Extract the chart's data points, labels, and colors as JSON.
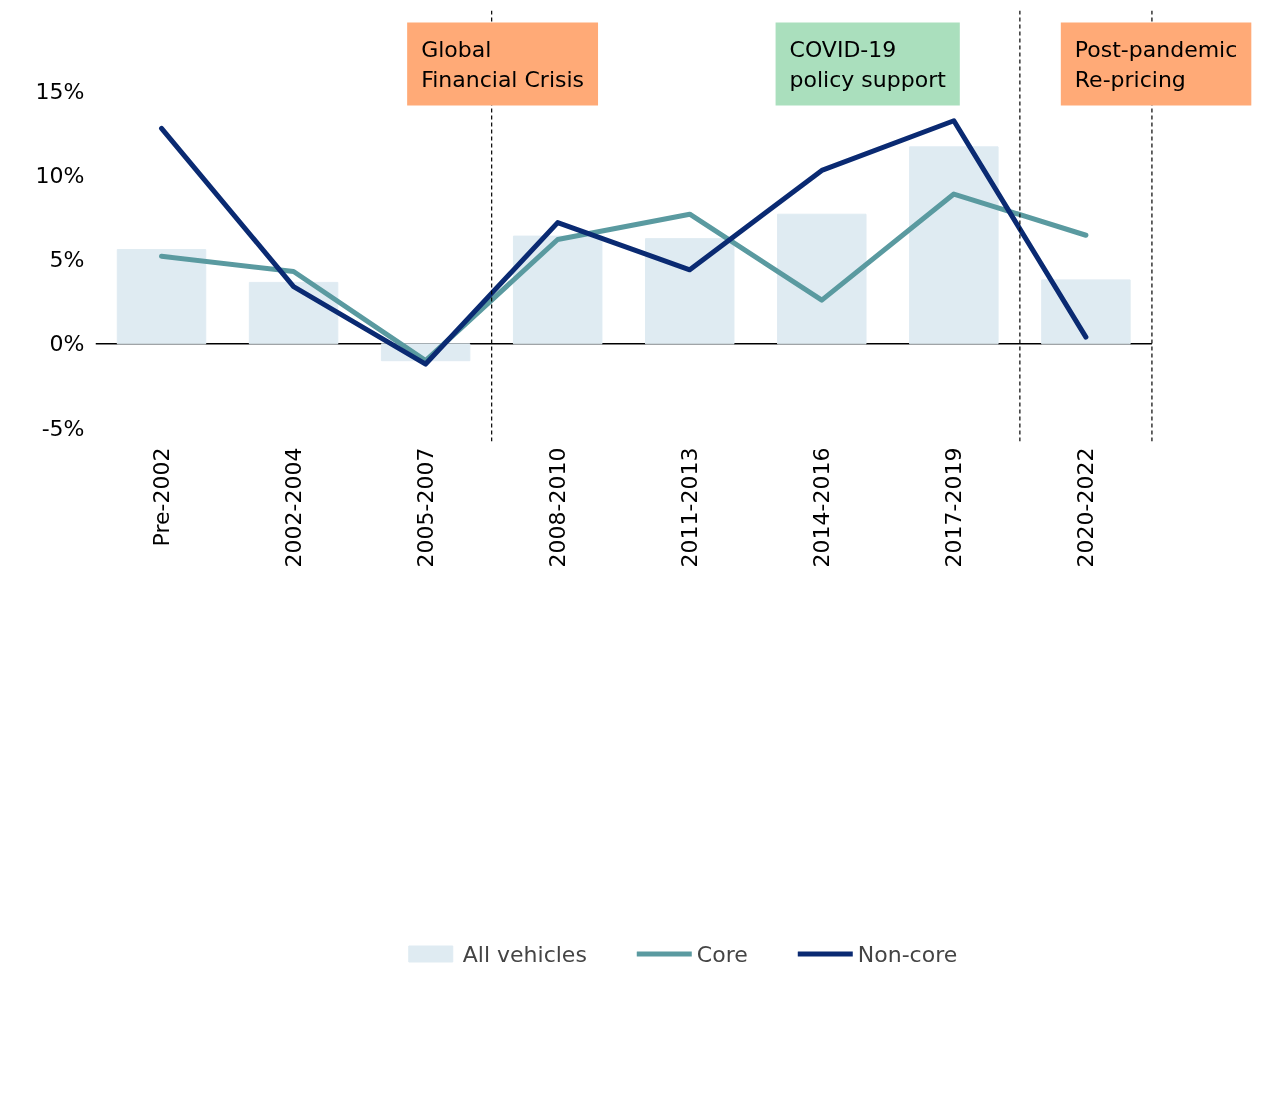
{
  "chart_data": {
    "type": "line",
    "categories": [
      "Pre-2002",
      "2002-2004",
      "2005-2007",
      "2008-2010",
      "2011-2013",
      "2014-2016",
      "2017-2019",
      "2020-2022"
    ],
    "series": [
      {
        "name": "All vehicles",
        "type": "bar",
        "color": "#dfebf2",
        "values": [
          5.6,
          3.65,
          -1.0,
          6.4,
          6.25,
          7.7,
          11.7,
          3.8
        ]
      },
      {
        "name": "Core",
        "color": "#5a9aa0",
        "values": [
          5.2,
          4.3,
          -1.0,
          6.2,
          7.7,
          2.6,
          8.9,
          6.45
        ]
      },
      {
        "name": "Non-core",
        "color": "#0a2a72",
        "values": [
          12.8,
          3.4,
          -1.2,
          7.2,
          4.4,
          10.3,
          13.25,
          0.4
        ]
      }
    ],
    "ylim": [
      -5.8,
      19.8
    ],
    "yticks": [
      {
        "value": -5,
        "label": "-5%"
      },
      {
        "value": 0,
        "label": "0%"
      },
      {
        "value": 5,
        "label": "5%"
      },
      {
        "value": 10,
        "label": "10%"
      },
      {
        "value": 15,
        "label": "15%"
      }
    ],
    "annotations": [
      "Global\nFinancial Crisis",
      "COVID-19\npolicy support",
      "Post-pandemic\nRe-pricing"
    ],
    "grid": false,
    "legend": "bottom"
  }
}
